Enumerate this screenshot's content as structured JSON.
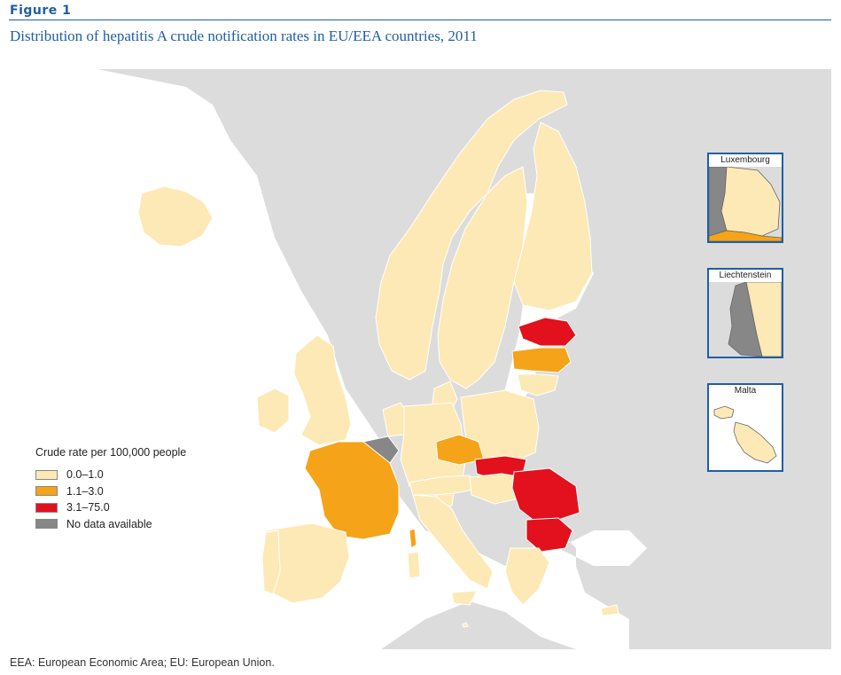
{
  "figure": {
    "label": "Figure 1",
    "title": "Distribution of hepatitis A crude notification rates in EU/EEA countries, 2011",
    "footnote": "EEA: European Economic Area; EU: European Union."
  },
  "colors": {
    "sea": "#ffffff",
    "non_eu_land": "#dcdcdc",
    "low": "#fde9b5",
    "medium": "#f5a318",
    "high": "#e2111d",
    "no_data": "#878787",
    "accent": "#1f5fa3"
  },
  "legend": {
    "title": "Crude rate per 100,000 people",
    "items": [
      {
        "label": "0.0–1.0",
        "category": "low"
      },
      {
        "label": "1.1–3.0",
        "category": "medium"
      },
      {
        "label": "3.1–75.0",
        "category": "high"
      },
      {
        "label": "No data available",
        "category": "no_data"
      }
    ]
  },
  "insets": [
    {
      "name": "Luxembourg"
    },
    {
      "name": "Liechtenstein"
    },
    {
      "name": "Malta"
    }
  ],
  "countries": [
    {
      "name": "Iceland",
      "category": "low"
    },
    {
      "name": "Norway",
      "category": "low"
    },
    {
      "name": "Sweden",
      "category": "low"
    },
    {
      "name": "Finland",
      "category": "low"
    },
    {
      "name": "Estonia",
      "category": "high"
    },
    {
      "name": "Latvia",
      "category": "medium"
    },
    {
      "name": "Lithuania",
      "category": "low"
    },
    {
      "name": "Denmark",
      "category": "low"
    },
    {
      "name": "Ireland",
      "category": "low"
    },
    {
      "name": "United Kingdom",
      "category": "low"
    },
    {
      "name": "Netherlands",
      "category": "low"
    },
    {
      "name": "Belgium",
      "category": "no_data"
    },
    {
      "name": "Luxembourg",
      "category": "medium"
    },
    {
      "name": "Liechtenstein",
      "category": "no_data"
    },
    {
      "name": "Germany",
      "category": "low"
    },
    {
      "name": "Poland",
      "category": "low"
    },
    {
      "name": "Czech Republic",
      "category": "medium"
    },
    {
      "name": "Slovakia",
      "category": "high"
    },
    {
      "name": "Austria",
      "category": "low"
    },
    {
      "name": "Hungary",
      "category": "low"
    },
    {
      "name": "Slovenia",
      "category": "low"
    },
    {
      "name": "Romania",
      "category": "high"
    },
    {
      "name": "Bulgaria",
      "category": "high"
    },
    {
      "name": "France",
      "category": "medium"
    },
    {
      "name": "Corsica",
      "category": "medium"
    },
    {
      "name": "Spain",
      "category": "low"
    },
    {
      "name": "Portugal",
      "category": "low"
    },
    {
      "name": "Italy",
      "category": "low"
    },
    {
      "name": "Sardinia",
      "category": "low"
    },
    {
      "name": "Sicily",
      "category": "low"
    },
    {
      "name": "Greece",
      "category": "low"
    },
    {
      "name": "Cyprus",
      "category": "low"
    },
    {
      "name": "Malta",
      "category": "low"
    }
  ]
}
